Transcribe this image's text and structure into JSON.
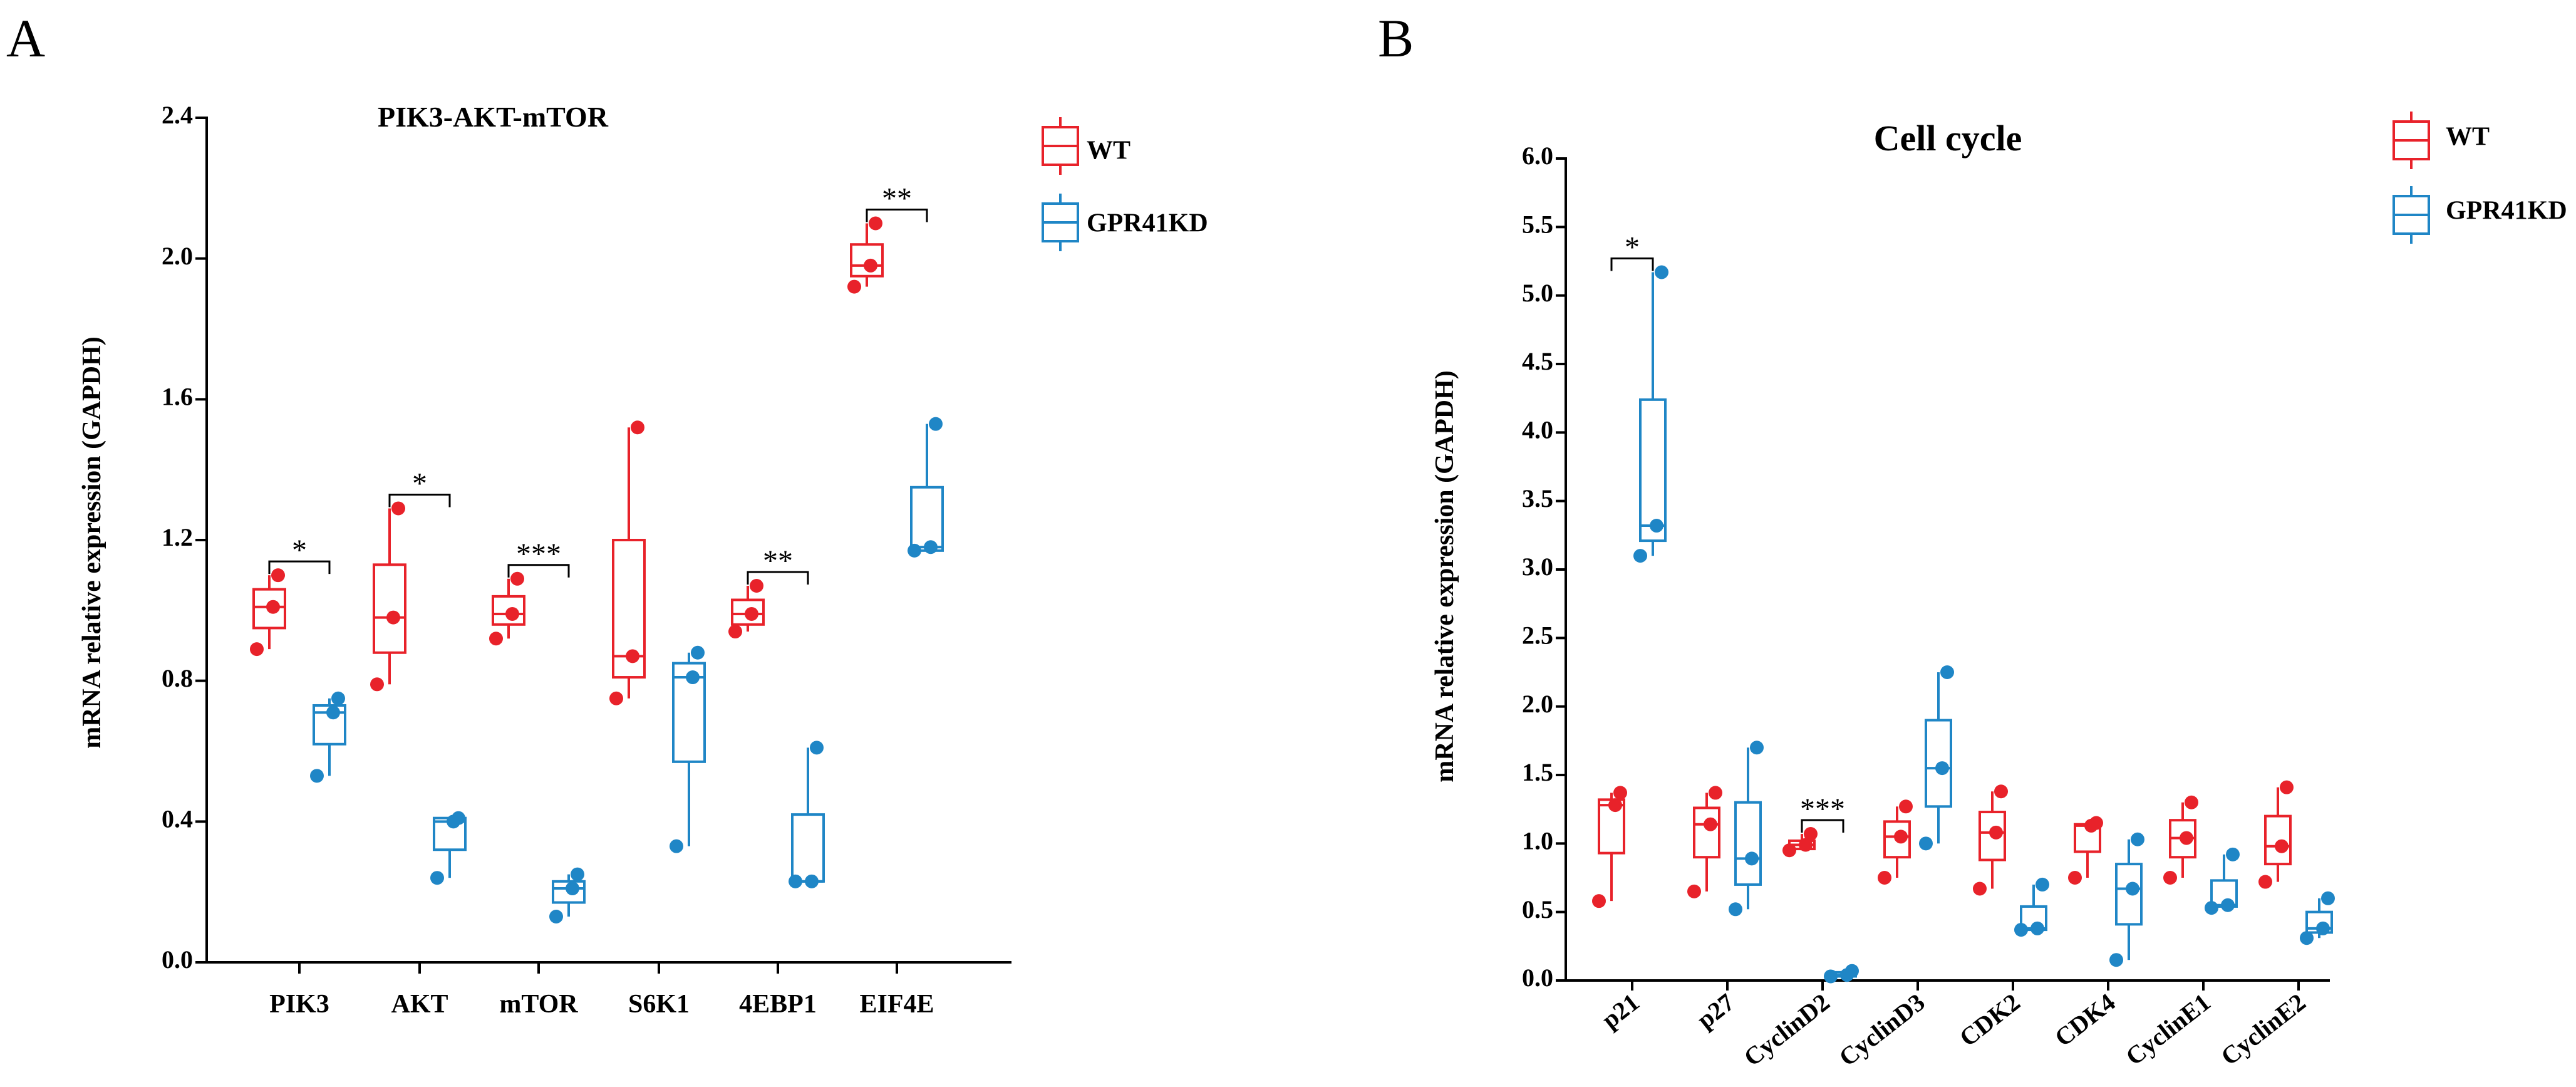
{
  "colors": {
    "WT": "#e8222a",
    "GPR41KD": "#1f86c6"
  },
  "legend": {
    "wt_label": "WT",
    "kd_label": "GPR41KD"
  },
  "panelA": {
    "panel_label": "A",
    "title": "PIK3-AKT-mTOR",
    "ylabel": "mRNA relative expression (GAPDH)",
    "y_ticks": [
      "0.0",
      "0.4",
      "0.8",
      "1.2",
      "1.6",
      "2.0",
      "2.4"
    ],
    "categories": [
      "PIK3",
      "AKT",
      "mTOR",
      "S6K1",
      "4EBP1",
      "EIF4E"
    ],
    "sig_labels": [
      "*",
      "*",
      "***",
      "**",
      "**"
    ]
  },
  "panelB": {
    "panel_label": "B",
    "title": "Cell cycle",
    "ylabel": "mRNA relative expression (GAPDH)",
    "y_ticks": [
      "0.0",
      "0.5",
      "1.0",
      "1.5",
      "2.0",
      "2.5",
      "3.0",
      "3.5",
      "4.0",
      "4.5",
      "5.0",
      "5.5",
      "6.0"
    ],
    "categories": [
      "p21",
      "p27",
      "CyclinD2",
      "CyclinD3",
      "CDK2",
      "CDK4",
      "CyclinE1",
      "CyclinE2"
    ],
    "sig_labels": [
      "*",
      "***"
    ]
  },
  "chart_data": [
    {
      "type": "box",
      "title": "PIK3-AKT-mTOR",
      "ylabel": "mRNA relative expression (GAPDH)",
      "ylim": [
        0,
        2.4
      ],
      "legend_position": "top-right",
      "categories": [
        "PIK3",
        "AKT",
        "mTOR",
        "S6K1",
        "4EBP1",
        "EIF4E"
      ],
      "series": [
        {
          "name": "WT",
          "boxes": [
            {
              "min": 0.89,
              "q1": 0.95,
              "median": 1.01,
              "q3": 1.06,
              "max": 1.1,
              "points": [
                0.89,
                1.01,
                1.1
              ]
            },
            {
              "min": 0.79,
              "q1": 0.88,
              "median": 0.98,
              "q3": 1.13,
              "max": 1.29,
              "points": [
                0.79,
                0.98,
                1.29
              ]
            },
            {
              "min": 0.92,
              "q1": 0.96,
              "median": 0.99,
              "q3": 1.04,
              "max": 1.09,
              "points": [
                0.92,
                0.99,
                1.09
              ]
            },
            {
              "min": 0.75,
              "q1": 0.81,
              "median": 0.87,
              "q3": 1.2,
              "max": 1.52,
              "points": [
                0.75,
                0.87,
                1.52
              ]
            },
            {
              "min": 0.94,
              "q1": 0.96,
              "median": 0.99,
              "q3": 1.03,
              "max": 1.07,
              "points": [
                0.94,
                0.99,
                1.07
              ]
            },
            {
              "min": 1.92,
              "q1": 1.95,
              "median": 1.98,
              "q3": 2.04,
              "max": 2.1,
              "points": [
                1.92,
                1.98,
                2.1
              ]
            }
          ]
        },
        {
          "name": "GPR41KD",
          "boxes": [
            {
              "min": 0.53,
              "q1": 0.62,
              "median": 0.71,
              "q3": 0.73,
              "max": 0.75,
              "points": [
                0.53,
                0.71,
                0.75
              ]
            },
            {
              "min": 0.24,
              "q1": 0.32,
              "median": 0.4,
              "q3": 0.41,
              "max": 0.41,
              "points": [
                0.24,
                0.4,
                0.41
              ]
            },
            {
              "min": 0.13,
              "q1": 0.17,
              "median": 0.21,
              "q3": 0.23,
              "max": 0.25,
              "points": [
                0.13,
                0.21,
                0.25
              ]
            },
            {
              "min": 0.33,
              "q1": 0.57,
              "median": 0.81,
              "q3": 0.85,
              "max": 0.88,
              "points": [
                0.33,
                0.81,
                0.88
              ]
            },
            {
              "min": 0.23,
              "q1": 0.23,
              "median": 0.23,
              "q3": 0.42,
              "max": 0.61,
              "points": [
                0.23,
                0.23,
                0.61
              ]
            },
            {
              "min": 1.17,
              "q1": 1.17,
              "median": 1.18,
              "q3": 1.35,
              "max": 1.53,
              "points": [
                1.17,
                1.18,
                1.53
              ]
            }
          ]
        }
      ],
      "significance": [
        {
          "category": "PIK3",
          "label": "*"
        },
        {
          "category": "AKT",
          "label": "*"
        },
        {
          "category": "mTOR",
          "label": "***"
        },
        {
          "category": "4EBP1",
          "label": "**"
        },
        {
          "category": "EIF4E",
          "label": "**"
        }
      ]
    },
    {
      "type": "box",
      "title": "Cell cycle",
      "ylabel": "mRNA relative expression (GAPDH)",
      "ylim": [
        0,
        6.0
      ],
      "legend_position": "top-right",
      "categories": [
        "p21",
        "p27",
        "CyclinD2",
        "CyclinD3",
        "CDK2",
        "CDK4",
        "CyclinE1",
        "CyclinE2"
      ],
      "series": [
        {
          "name": "WT",
          "boxes": [
            {
              "min": 0.58,
              "q1": 0.93,
              "median": 1.28,
              "q3": 1.32,
              "max": 1.37,
              "points": [
                0.58,
                1.28,
                1.37
              ]
            },
            {
              "min": 0.65,
              "q1": 0.9,
              "median": 1.14,
              "q3": 1.26,
              "max": 1.37,
              "points": [
                0.65,
                1.14,
                1.37
              ]
            },
            {
              "min": 0.95,
              "q1": 0.96,
              "median": 0.99,
              "q3": 1.02,
              "max": 1.07,
              "points": [
                0.95,
                0.99,
                1.07
              ]
            },
            {
              "min": 0.75,
              "q1": 0.9,
              "median": 1.05,
              "q3": 1.16,
              "max": 1.27,
              "points": [
                0.75,
                1.05,
                1.27
              ]
            },
            {
              "min": 0.67,
              "q1": 0.88,
              "median": 1.08,
              "q3": 1.23,
              "max": 1.38,
              "points": [
                0.67,
                1.08,
                1.38
              ]
            },
            {
              "min": 0.75,
              "q1": 0.94,
              "median": 1.13,
              "q3": 1.14,
              "max": 1.15,
              "points": [
                0.75,
                1.13,
                1.15
              ]
            },
            {
              "min": 0.75,
              "q1": 0.9,
              "median": 1.04,
              "q3": 1.17,
              "max": 1.3,
              "points": [
                0.75,
                1.04,
                1.3
              ]
            },
            {
              "min": 0.72,
              "q1": 0.85,
              "median": 0.98,
              "q3": 1.2,
              "max": 1.41,
              "points": [
                0.72,
                0.98,
                1.41
              ]
            }
          ]
        },
        {
          "name": "GPR41KD",
          "boxes": [
            {
              "min": 3.1,
              "q1": 3.21,
              "median": 3.32,
              "q3": 4.24,
              "max": 5.17,
              "points": [
                3.1,
                3.32,
                5.17
              ]
            },
            {
              "min": 0.52,
              "q1": 0.7,
              "median": 0.89,
              "q3": 1.3,
              "max": 1.7,
              "points": [
                0.52,
                0.89,
                1.7
              ]
            },
            {
              "min": 0.03,
              "q1": 0.03,
              "median": 0.04,
              "q3": 0.06,
              "max": 0.07,
              "points": [
                0.03,
                0.04,
                0.07
              ]
            },
            {
              "min": 1.0,
              "q1": 1.27,
              "median": 1.55,
              "q3": 1.9,
              "max": 2.25,
              "points": [
                1.0,
                1.55,
                2.25
              ]
            },
            {
              "min": 0.37,
              "q1": 0.37,
              "median": 0.38,
              "q3": 0.54,
              "max": 0.7,
              "points": [
                0.37,
                0.38,
                0.7
              ]
            },
            {
              "min": 0.15,
              "q1": 0.41,
              "median": 0.67,
              "q3": 0.85,
              "max": 1.03,
              "points": [
                0.15,
                0.67,
                1.03
              ]
            },
            {
              "min": 0.53,
              "q1": 0.54,
              "median": 0.55,
              "q3": 0.73,
              "max": 0.92,
              "points": [
                0.53,
                0.55,
                0.92
              ]
            },
            {
              "min": 0.31,
              "q1": 0.35,
              "median": 0.38,
              "q3": 0.5,
              "max": 0.6,
              "points": [
                0.31,
                0.38,
                0.6
              ]
            }
          ]
        }
      ],
      "significance": [
        {
          "category": "p21",
          "label": "*"
        },
        {
          "category": "CyclinD2",
          "label": "***"
        }
      ]
    }
  ]
}
